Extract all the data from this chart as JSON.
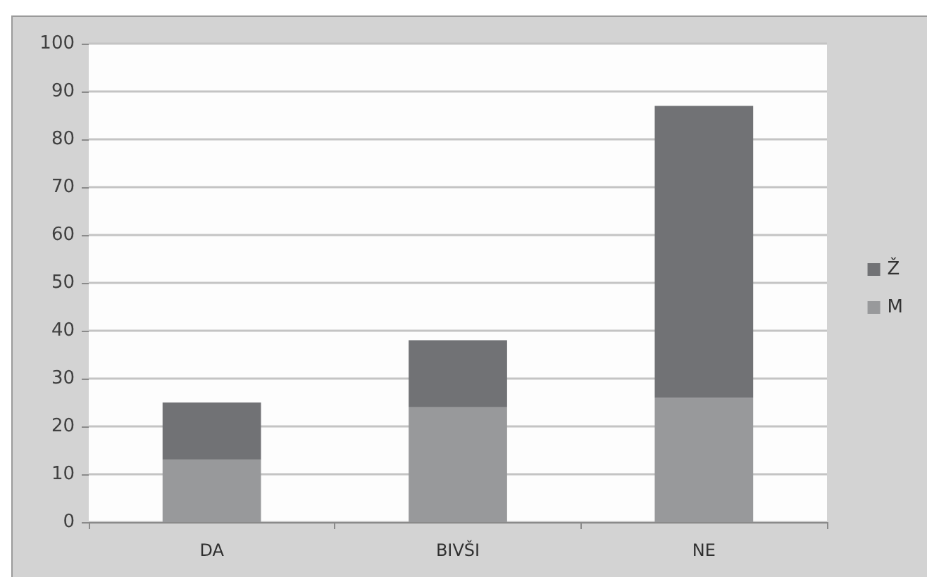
{
  "chart_data": {
    "type": "bar",
    "stacked": true,
    "categories": [
      "DA",
      "BIVŠI",
      "NE"
    ],
    "series": [
      {
        "name": "M",
        "color": "#98999b",
        "values": [
          13,
          24,
          26
        ]
      },
      {
        "name": "Ž",
        "color": "#717275",
        "values": [
          12,
          14,
          61
        ]
      }
    ],
    "ylim": [
      0,
      100
    ],
    "yticks": [
      0,
      10,
      20,
      30,
      40,
      50,
      60,
      70,
      80,
      90,
      100
    ],
    "grid": "y",
    "legend": "right"
  }
}
